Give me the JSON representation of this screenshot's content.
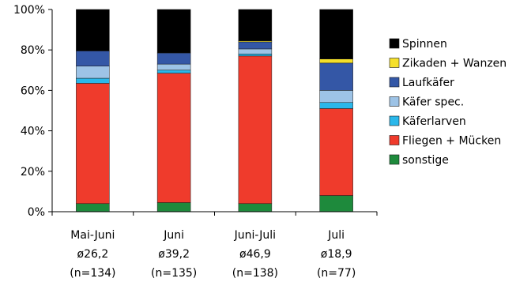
{
  "chart_data": {
    "type": "bar",
    "stacked": true,
    "normalized": true,
    "categories": [
      {
        "lines": [
          "Mai-Juni",
          "ø26,2",
          "(n=134)"
        ]
      },
      {
        "lines": [
          "Juni",
          "ø39,2",
          "(n=135)"
        ]
      },
      {
        "lines": [
          "Juni-Juli",
          "ø46,9",
          "(n=138)"
        ]
      },
      {
        "lines": [
          "Juli",
          "ø18,9",
          "(n=77)"
        ]
      }
    ],
    "yticks": [
      "0%",
      "20%",
      "40%",
      "60%",
      "80%",
      "100%"
    ],
    "ylim": [
      0,
      100
    ],
    "grid": false,
    "legend_position": "right",
    "series": [
      {
        "name": "sonstige",
        "color": "#1e8a3c",
        "values": [
          4,
          4.5,
          4,
          8
        ]
      },
      {
        "name": "Fliegen + Mücken",
        "color": "#ef3b2c",
        "values": [
          59.5,
          64,
          73,
          43
        ]
      },
      {
        "name": "Käferlarven",
        "color": "#2ab7ea",
        "values": [
          2.5,
          1.5,
          1,
          3
        ]
      },
      {
        "name": "Käfer spec.",
        "color": "#9dc3e6",
        "values": [
          6,
          3,
          2.5,
          6
        ]
      },
      {
        "name": "Laufkäfer",
        "color": "#3457a6",
        "values": [
          7.5,
          5.5,
          3.5,
          13.5
        ]
      },
      {
        "name": "Zikaden + Wanzen",
        "color": "#f5e02a",
        "values": [
          0,
          0,
          0.5,
          2
        ]
      },
      {
        "name": "Spinnen",
        "color": "#000000",
        "values": [
          20.5,
          21.5,
          15.5,
          24.5
        ]
      }
    ]
  }
}
